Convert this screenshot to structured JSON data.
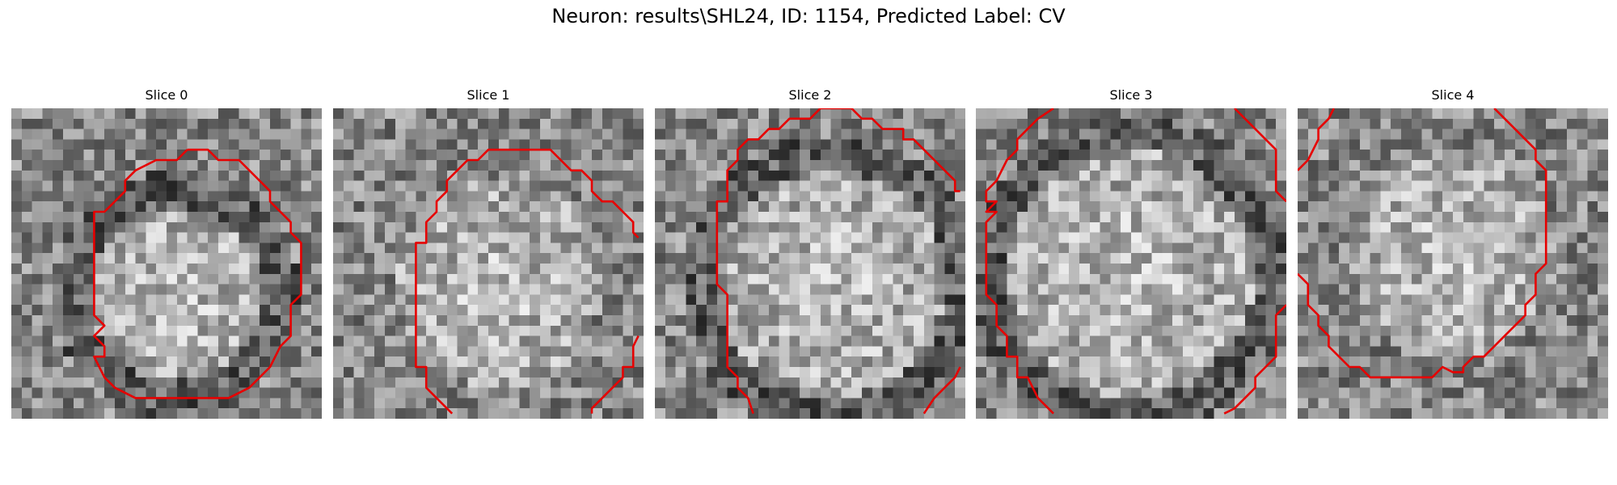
{
  "figure": {
    "title": "Neuron: results\\SHL24, ID: 1154, Predicted Label: CV"
  },
  "colors": {
    "contour": "#e60000",
    "background": "#ffffff"
  },
  "image_grid_size": 30,
  "slices": [
    {
      "label": "Slice 0",
      "bright_center": [
        16,
        18
      ],
      "bright_radius": 8.5,
      "dark_ring": true,
      "contours": [
        [
          [
            17,
            4
          ],
          [
            19,
            4
          ],
          [
            20,
            5
          ],
          [
            22,
            5
          ],
          [
            25,
            8
          ],
          [
            25,
            9
          ],
          [
            27,
            11
          ],
          [
            27,
            12
          ],
          [
            28,
            13
          ],
          [
            28,
            18
          ],
          [
            27,
            19
          ],
          [
            27,
            22
          ],
          [
            26,
            23
          ],
          [
            25,
            25
          ],
          [
            23,
            27
          ],
          [
            21,
            28
          ],
          [
            16,
            28
          ],
          [
            12,
            28
          ],
          [
            10,
            27
          ],
          [
            9,
            26
          ],
          [
            8,
            24
          ],
          [
            9,
            24
          ],
          [
            9,
            23
          ],
          [
            8,
            22
          ],
          [
            9,
            21
          ],
          [
            8,
            20
          ],
          [
            8,
            10
          ],
          [
            9,
            10
          ],
          [
            11,
            8
          ],
          [
            11,
            7
          ],
          [
            12,
            6
          ],
          [
            14,
            5
          ],
          [
            16,
            5
          ],
          [
            17,
            4
          ]
        ]
      ]
    },
    {
      "label": "Slice 1",
      "bright_center": [
        16,
        17
      ],
      "bright_radius": 10,
      "dark_ring": false,
      "contours": [
        [
          [
            11.5,
            29.5
          ],
          [
            10,
            28
          ],
          [
            9,
            27
          ],
          [
            9,
            25
          ],
          [
            8,
            25
          ],
          [
            8,
            24
          ],
          [
            8,
            22
          ],
          [
            8,
            20
          ],
          [
            8,
            13
          ],
          [
            9,
            13
          ],
          [
            9,
            11
          ],
          [
            10,
            10
          ],
          [
            10,
            9
          ],
          [
            11,
            8
          ],
          [
            11,
            7
          ],
          [
            12,
            6
          ],
          [
            13,
            5
          ],
          [
            14,
            5
          ],
          [
            15,
            4
          ],
          [
            17,
            4
          ],
          [
            19,
            4
          ],
          [
            21,
            4
          ],
          [
            22,
            5
          ],
          [
            23,
            6
          ],
          [
            24,
            6
          ],
          [
            25,
            7
          ],
          [
            25,
            8
          ],
          [
            26,
            9
          ],
          [
            27,
            9
          ],
          [
            28,
            10
          ],
          [
            29,
            11
          ],
          [
            29,
            12
          ],
          [
            29.5,
            12.5
          ]
        ],
        [
          [
            29.5,
            22
          ],
          [
            29,
            23
          ],
          [
            29,
            25
          ],
          [
            28,
            25
          ],
          [
            28,
            26
          ],
          [
            27,
            27
          ],
          [
            26,
            28
          ],
          [
            25,
            29
          ],
          [
            25,
            29.5
          ]
        ]
      ]
    },
    {
      "label": "Slice 2",
      "bright_center": [
        17,
        17
      ],
      "bright_radius": 11,
      "dark_ring": true,
      "contours": [
        [
          [
            9.5,
            29.5
          ],
          [
            9,
            28
          ],
          [
            8,
            27
          ],
          [
            8,
            26
          ],
          [
            7,
            25
          ],
          [
            7,
            22
          ],
          [
            7,
            18
          ],
          [
            6,
            17
          ],
          [
            6,
            15
          ],
          [
            6,
            9
          ],
          [
            7,
            9
          ],
          [
            7,
            6
          ],
          [
            8,
            5
          ],
          [
            8,
            4
          ],
          [
            9,
            3
          ],
          [
            10,
            3
          ],
          [
            11,
            2
          ],
          [
            12,
            2
          ],
          [
            13,
            1
          ],
          [
            15,
            1
          ],
          [
            16,
            0
          ],
          [
            19,
            0
          ],
          [
            20,
            1
          ],
          [
            21,
            1
          ],
          [
            22,
            2
          ],
          [
            24,
            2
          ],
          [
            24,
            3
          ],
          [
            25,
            3
          ],
          [
            26,
            4
          ],
          [
            27,
            5
          ],
          [
            28,
            6
          ],
          [
            29,
            7
          ],
          [
            29,
            8
          ],
          [
            29.5,
            8
          ]
        ],
        [
          [
            26,
            29.5
          ],
          [
            27,
            28
          ],
          [
            28,
            27
          ],
          [
            29,
            26
          ],
          [
            29.5,
            25
          ]
        ]
      ]
    },
    {
      "label": "Slice 3",
      "bright_center": [
        15,
        16
      ],
      "bright_radius": 12,
      "dark_ring": true,
      "contours": [
        [
          [
            7.5,
            0
          ],
          [
            6,
            1
          ],
          [
            5,
            2
          ],
          [
            4,
            3
          ],
          [
            4,
            4
          ],
          [
            3,
            5
          ],
          [
            2,
            7
          ],
          [
            1,
            8
          ],
          [
            1,
            9
          ],
          [
            2,
            9
          ],
          [
            1,
            10
          ],
          [
            2,
            10
          ],
          [
            1,
            11
          ],
          [
            1,
            18
          ],
          [
            2,
            19
          ],
          [
            2,
            21
          ],
          [
            3,
            22
          ],
          [
            3,
            24
          ],
          [
            4,
            24
          ],
          [
            4,
            26
          ],
          [
            5,
            26
          ],
          [
            6,
            28
          ],
          [
            7,
            29
          ],
          [
            7.5,
            29.5
          ]
        ],
        [
          [
            25,
            0
          ],
          [
            27,
            2
          ],
          [
            28,
            3
          ],
          [
            29,
            4
          ],
          [
            29,
            8
          ],
          [
            30,
            9
          ]
        ],
        [
          [
            24,
            29.5
          ],
          [
            25,
            29
          ],
          [
            26,
            28
          ],
          [
            27,
            27
          ],
          [
            27,
            26
          ],
          [
            28,
            25
          ],
          [
            29,
            24
          ],
          [
            29,
            20
          ],
          [
            30,
            19
          ]
        ]
      ]
    },
    {
      "label": "Slice 4",
      "bright_center": [
        15,
        14
      ],
      "bright_radius": 10,
      "dark_ring": false,
      "contours": [
        [
          [
            3.5,
            0
          ],
          [
            3,
            1
          ],
          [
            2,
            2
          ],
          [
            2,
            3
          ],
          [
            1,
            5
          ],
          [
            0,
            6
          ]
        ],
        [
          [
            19,
            0
          ],
          [
            21,
            2
          ],
          [
            22,
            3
          ],
          [
            23,
            4
          ],
          [
            23,
            5
          ],
          [
            24,
            6
          ],
          [
            24,
            7
          ],
          [
            24,
            15
          ],
          [
            23,
            16
          ],
          [
            23,
            18
          ],
          [
            22,
            19
          ],
          [
            22,
            20
          ],
          [
            21,
            21
          ],
          [
            20,
            22
          ],
          [
            19,
            23
          ],
          [
            18,
            24
          ],
          [
            17,
            24
          ],
          [
            16,
            25
          ],
          [
            16,
            25.5
          ],
          [
            15,
            25.5
          ],
          [
            14,
            25
          ],
          [
            13,
            26
          ],
          [
            11,
            26
          ],
          [
            10,
            26
          ],
          [
            9,
            26
          ],
          [
            7,
            26
          ],
          [
            6,
            25
          ],
          [
            5,
            25
          ],
          [
            4,
            24
          ],
          [
            3,
            23
          ],
          [
            3,
            22
          ],
          [
            2,
            21
          ],
          [
            2,
            20
          ],
          [
            1,
            19
          ],
          [
            1,
            18
          ],
          [
            1,
            17
          ],
          [
            0,
            16
          ]
        ]
      ]
    }
  ]
}
